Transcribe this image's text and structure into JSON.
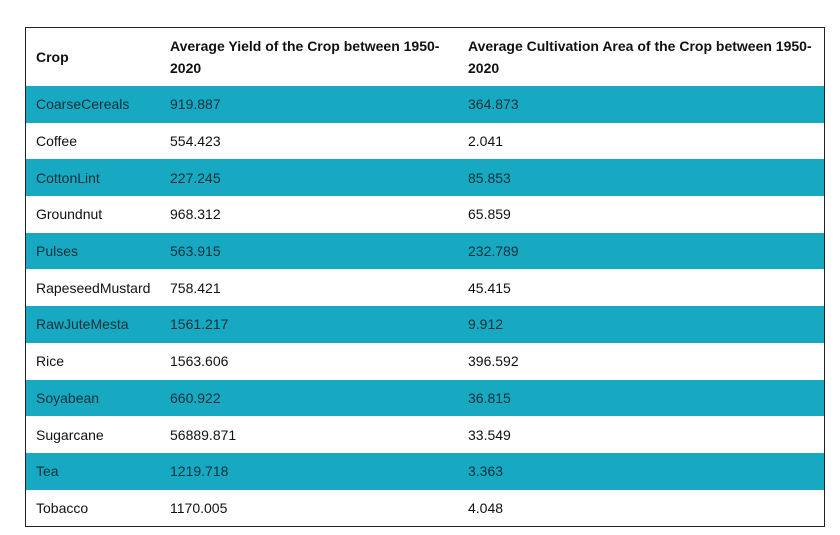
{
  "chart_data": {
    "type": "table",
    "columns": [
      "Crop",
      "Average Yield of the Crop between 1950-2020",
      "Average Cultivation Area of the Crop between 1950-2020"
    ],
    "rows": [
      [
        "CoarseCereals",
        "919.887",
        "364.873"
      ],
      [
        "Coffee",
        "554.423",
        "2.041"
      ],
      [
        "CottonLint",
        "227.245",
        "85.853"
      ],
      [
        "Groundnut",
        "968.312",
        "65.859"
      ],
      [
        "Pulses",
        "563.915",
        "232.789"
      ],
      [
        "RapeseedMustard",
        "758.421",
        "45.415"
      ],
      [
        "RawJuteMesta",
        "1561.217",
        "9.912"
      ],
      [
        "Rice",
        "1563.606",
        "396.592"
      ],
      [
        "Soyabean",
        "660.922",
        "36.815"
      ],
      [
        "Sugarcane",
        "56889.871",
        "33.549"
      ],
      [
        "Tea",
        "1219.718",
        "3.363"
      ],
      [
        "Tobacco",
        "1170.005",
        "4.048"
      ]
    ],
    "colors": {
      "stripe": "#17a9c1",
      "background": "#ffffff"
    }
  }
}
